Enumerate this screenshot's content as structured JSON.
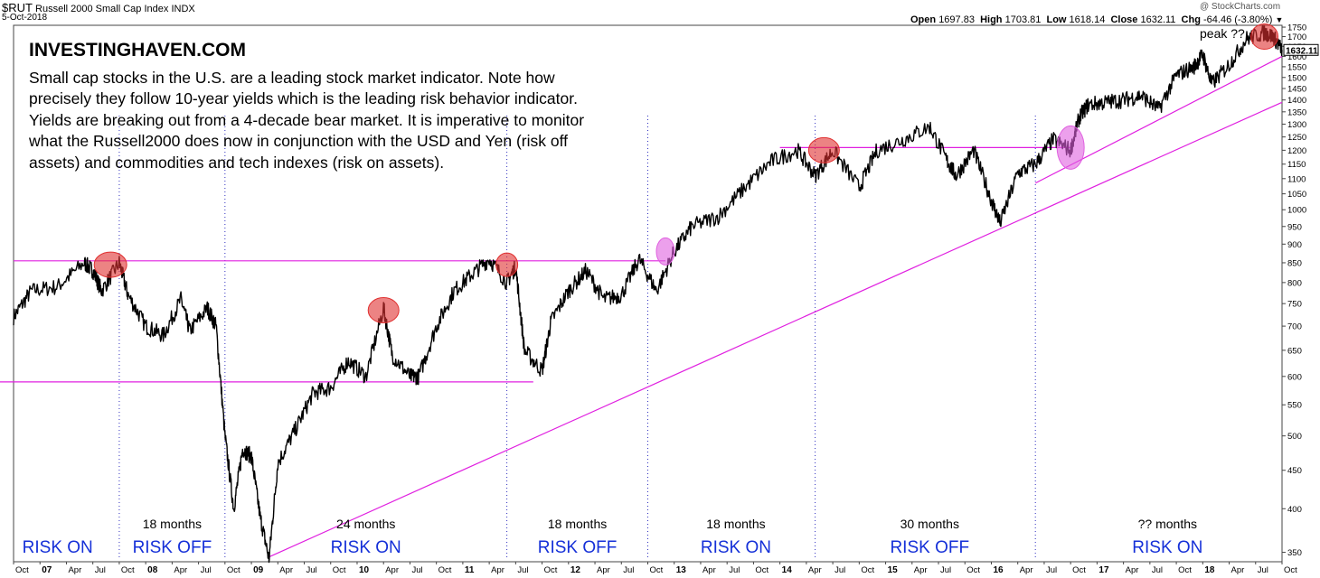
{
  "header": {
    "symbol": "$RUT",
    "name": "Russell 2000 Small Cap Index",
    "exchange": "INDX",
    "date": "5-Oct-2018",
    "ohlc": [
      {
        "label": "Open",
        "value": "1697.83"
      },
      {
        "label": "High",
        "value": "1703.81"
      },
      {
        "label": "Low",
        "value": "1618.14"
      },
      {
        "label": "Close",
        "value": "1632.11"
      },
      {
        "label": "Chg",
        "value": "-64.46 (-3.80%)"
      }
    ],
    "down_arrow": "▼",
    "copyright": "@ StockCharts.com"
  },
  "annotation": {
    "brand": "INVESTINGHAVEN.COM",
    "text": "Small cap stocks in the U.S. are a leading stock market indicator. Note how precisely they follow 10-year yields which is the leading risk behavior indicator. Yields are breaking out from a 4-decade bear market. It is imperative to monitor what the Russell2000 does now in conjunction with the USD and Yen (risk off assets) and commodities and tech indexes (risk on assets).",
    "peak_label": "peak ??",
    "last_price_label": "1632.11"
  },
  "colors": {
    "trendline": "#e020e0",
    "divider": "#3030c0",
    "phase_text": "#1530d8",
    "circle_red": "#e03030",
    "circle_pink": "#e060e0",
    "price": "#000000"
  },
  "chart_data": {
    "type": "line",
    "title": "$RUT Russell 2000 Small Cap Index INDX",
    "y_scale": "log",
    "ylim": [
      340,
      1760
    ],
    "y_ticks": [
      350,
      400,
      450,
      500,
      550,
      600,
      650,
      700,
      750,
      800,
      850,
      900,
      950,
      1000,
      1050,
      1100,
      1150,
      1200,
      1250,
      1300,
      1350,
      1400,
      1450,
      1500,
      1550,
      1600,
      1650,
      1700,
      1750
    ],
    "x_ticks": [
      "Oct",
      "07",
      "Apr",
      "Jul",
      "Oct",
      "08",
      "Apr",
      "Jul",
      "Oct",
      "09",
      "Apr",
      "Jul",
      "Oct",
      "10",
      "Apr",
      "Jul",
      "Oct",
      "11",
      "Apr",
      "Jul",
      "Oct",
      "12",
      "Apr",
      "Jul",
      "Oct",
      "13",
      "Apr",
      "Jul",
      "Oct",
      "14",
      "Apr",
      "Jul",
      "Oct",
      "15",
      "Apr",
      "Jul",
      "Oct",
      "16",
      "Apr",
      "Jul",
      "Oct",
      "17",
      "Apr",
      "Jul",
      "Oct",
      "18",
      "Apr",
      "Jul",
      "Oct"
    ],
    "x_start": "2006-10",
    "x_end": "2018-10",
    "series": [
      {
        "name": "",
        "points": [
          [
            "2006-10",
            720
          ],
          [
            "2006-12",
            780
          ],
          [
            "2007-03",
            790
          ],
          [
            "2007-06",
            850
          ],
          [
            "2007-07",
            830
          ],
          [
            "2007-08",
            780
          ],
          [
            "2007-10",
            850
          ],
          [
            "2007-11",
            770
          ],
          [
            "2008-01",
            700
          ],
          [
            "2008-03",
            680
          ],
          [
            "2008-05",
            760
          ],
          [
            "2008-06",
            690
          ],
          [
            "2008-08",
            740
          ],
          [
            "2008-09",
            700
          ],
          [
            "2008-10",
            500
          ],
          [
            "2008-11",
            400
          ],
          [
            "2008-12",
            480
          ],
          [
            "2009-01",
            470
          ],
          [
            "2009-02",
            390
          ],
          [
            "2009-03",
            343
          ],
          [
            "2009-04",
            460
          ],
          [
            "2009-06",
            510
          ],
          [
            "2009-08",
            570
          ],
          [
            "2009-10",
            580
          ],
          [
            "2009-12",
            630
          ],
          [
            "2010-02",
            600
          ],
          [
            "2010-04",
            740
          ],
          [
            "2010-05",
            640
          ],
          [
            "2010-07",
            600
          ],
          [
            "2010-08",
            600
          ],
          [
            "2010-10",
            700
          ],
          [
            "2010-12",
            780
          ],
          [
            "2011-02",
            820
          ],
          [
            "2011-04",
            860
          ],
          [
            "2011-06",
            800
          ],
          [
            "2011-07",
            840
          ],
          [
            "2011-08",
            650
          ],
          [
            "2011-10",
            610
          ],
          [
            "2011-11",
            710
          ],
          [
            "2012-01",
            780
          ],
          [
            "2012-03",
            830
          ],
          [
            "2012-05",
            760
          ],
          [
            "2012-07",
            770
          ],
          [
            "2012-09",
            860
          ],
          [
            "2012-11",
            780
          ],
          [
            "2013-01",
            880
          ],
          [
            "2013-03",
            950
          ],
          [
            "2013-06",
            980
          ],
          [
            "2013-09",
            1070
          ],
          [
            "2013-12",
            1160
          ],
          [
            "2014-03",
            1200
          ],
          [
            "2014-05",
            1110
          ],
          [
            "2014-07",
            1200
          ],
          [
            "2014-10",
            1070
          ],
          [
            "2014-12",
            1200
          ],
          [
            "2015-03",
            1240
          ],
          [
            "2015-06",
            1290
          ],
          [
            "2015-08",
            1160
          ],
          [
            "2015-09",
            1110
          ],
          [
            "2015-11",
            1200
          ],
          [
            "2016-01",
            1030
          ],
          [
            "2016-02",
            960
          ],
          [
            "2016-04",
            1120
          ],
          [
            "2016-06",
            1150
          ],
          [
            "2016-08",
            1240
          ],
          [
            "2016-10",
            1200
          ],
          [
            "2016-11",
            1330
          ],
          [
            "2016-12",
            1380
          ],
          [
            "2017-02",
            1390
          ],
          [
            "2017-04",
            1400
          ],
          [
            "2017-06",
            1420
          ],
          [
            "2017-08",
            1360
          ],
          [
            "2017-10",
            1510
          ],
          [
            "2017-12",
            1550
          ],
          [
            "2018-01",
            1610
          ],
          [
            "2018-02",
            1470
          ],
          [
            "2018-04",
            1560
          ],
          [
            "2018-06",
            1690
          ],
          [
            "2018-08",
            1720
          ],
          [
            "2018-09",
            1700
          ],
          [
            "2018-10",
            1632
          ]
        ]
      }
    ],
    "phases": [
      {
        "label": "RISK ON",
        "duration": ""
      },
      {
        "label": "RISK OFF",
        "duration": "18 months"
      },
      {
        "label": "RISK ON",
        "duration": "24 months"
      },
      {
        "label": "RISK OFF",
        "duration": "18 months"
      },
      {
        "label": "RISK ON",
        "duration": "18 months"
      },
      {
        "label": "RISK OFF",
        "duration": "30 months"
      },
      {
        "label": "RISK ON",
        "duration": "?? months"
      }
    ],
    "grid": false
  }
}
